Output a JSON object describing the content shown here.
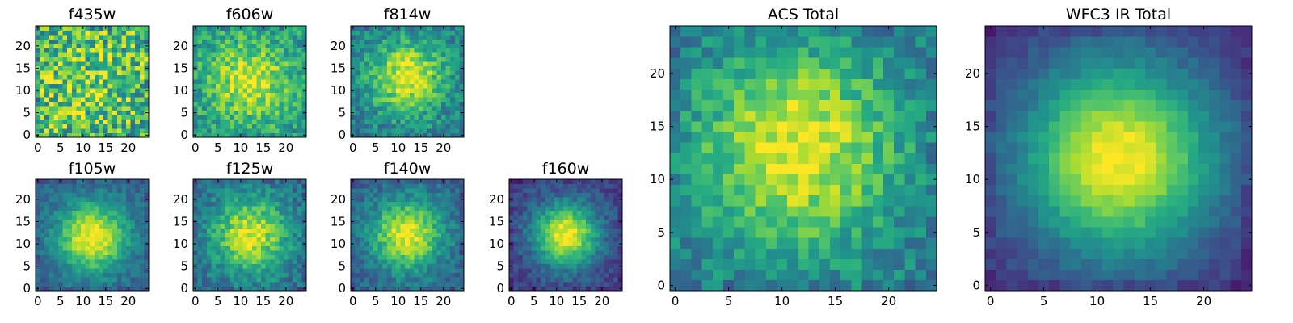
{
  "chart_data": [
    {
      "type": "heatmap",
      "title": "f435w",
      "xticks": [
        "0",
        "5",
        "10",
        "15",
        "20"
      ],
      "yticks": [
        "0",
        "5",
        "10",
        "15",
        "20"
      ],
      "xlim": [
        -0.5,
        24.5
      ],
      "ylim": [
        -0.5,
        24.5
      ],
      "grid": false,
      "colormap": "viridis",
      "blob": {
        "cx": 12,
        "cy": 11,
        "spread": 9,
        "peak": 0.78,
        "floor": 0.62,
        "noise": 0.32
      }
    },
    {
      "type": "heatmap",
      "title": "f606w",
      "xticks": [
        "0",
        "5",
        "10",
        "15",
        "20"
      ],
      "yticks": [
        "0",
        "5",
        "10",
        "15",
        "20"
      ],
      "xlim": [
        -0.5,
        24.5
      ],
      "ylim": [
        -0.5,
        24.5
      ],
      "grid": false,
      "colormap": "viridis",
      "blob": {
        "cx": 12,
        "cy": 12,
        "spread": 6,
        "peak": 0.95,
        "floor": 0.55,
        "noise": 0.18
      }
    },
    {
      "type": "heatmap",
      "title": "f814w",
      "xticks": [
        "0",
        "5",
        "10",
        "15",
        "20"
      ],
      "yticks": [
        "0",
        "5",
        "10",
        "15",
        "20"
      ],
      "xlim": [
        -0.5,
        24.5
      ],
      "ylim": [
        -0.5,
        24.5
      ],
      "grid": false,
      "colormap": "viridis",
      "blob": {
        "cx": 12,
        "cy": 13,
        "spread": 5.5,
        "peak": 0.98,
        "floor": 0.45,
        "noise": 0.16
      }
    },
    {
      "type": "heatmap",
      "title": "f105w",
      "xticks": [
        "0",
        "5",
        "10",
        "15",
        "20"
      ],
      "yticks": [
        "0",
        "5",
        "10",
        "15",
        "20"
      ],
      "xlim": [
        -0.5,
        24.5
      ],
      "ylim": [
        -0.5,
        24.5
      ],
      "grid": false,
      "colormap": "viridis",
      "blob": {
        "cx": 12,
        "cy": 11.5,
        "spread": 5.5,
        "peak": 1.0,
        "floor": 0.32,
        "noise": 0.1
      }
    },
    {
      "type": "heatmap",
      "title": "f125w",
      "xticks": [
        "0",
        "5",
        "10",
        "15",
        "20"
      ],
      "yticks": [
        "0",
        "5",
        "10",
        "15",
        "20"
      ],
      "xlim": [
        -0.5,
        24.5
      ],
      "ylim": [
        -0.5,
        24.5
      ],
      "grid": false,
      "colormap": "viridis",
      "blob": {
        "cx": 12,
        "cy": 12,
        "spread": 6,
        "peak": 0.95,
        "floor": 0.35,
        "noise": 0.14
      }
    },
    {
      "type": "heatmap",
      "title": "f140w",
      "xticks": [
        "0",
        "5",
        "10",
        "15",
        "20"
      ],
      "yticks": [
        "0",
        "5",
        "10",
        "15",
        "20"
      ],
      "xlim": [
        -0.5,
        24.5
      ],
      "ylim": [
        -0.5,
        24.5
      ],
      "grid": false,
      "colormap": "viridis",
      "blob": {
        "cx": 12,
        "cy": 12,
        "spread": 5.5,
        "peak": 0.98,
        "floor": 0.32,
        "noise": 0.12
      }
    },
    {
      "type": "heatmap",
      "title": "f160w",
      "xticks": [
        "0",
        "5",
        "10",
        "15",
        "20"
      ],
      "yticks": [
        "0",
        "5",
        "10",
        "15",
        "20"
      ],
      "xlim": [
        -0.5,
        24.5
      ],
      "ylim": [
        -0.5,
        24.5
      ],
      "grid": false,
      "colormap": "viridis",
      "blob": {
        "cx": 12,
        "cy": 12,
        "spread": 5,
        "peak": 1.0,
        "floor": 0.2,
        "noise": 0.1
      }
    },
    {
      "type": "heatmap",
      "title": "ACS Total",
      "xticks": [
        "0",
        "5",
        "10",
        "15",
        "20"
      ],
      "yticks": [
        "0",
        "5",
        "10",
        "15",
        "20"
      ],
      "xlim": [
        -0.5,
        24.5
      ],
      "ylim": [
        -0.5,
        24.5
      ],
      "grid": false,
      "colormap": "viridis",
      "blob": {
        "cx": 11.5,
        "cy": 13,
        "spread": 6.5,
        "peak": 0.97,
        "floor": 0.42,
        "noise": 0.14
      }
    },
    {
      "type": "heatmap",
      "title": "WFC3 IR Total",
      "xticks": [
        "0",
        "5",
        "10",
        "15",
        "20"
      ],
      "yticks": [
        "0",
        "5",
        "10",
        "15",
        "20"
      ],
      "xlim": [
        -0.5,
        24.5
      ],
      "ylim": [
        -0.5,
        24.5
      ],
      "grid": false,
      "colormap": "viridis",
      "blob": {
        "cx": 12,
        "cy": 12,
        "spread": 6.5,
        "peak": 1.0,
        "floor": 0.15,
        "noise": 0.05
      }
    }
  ]
}
